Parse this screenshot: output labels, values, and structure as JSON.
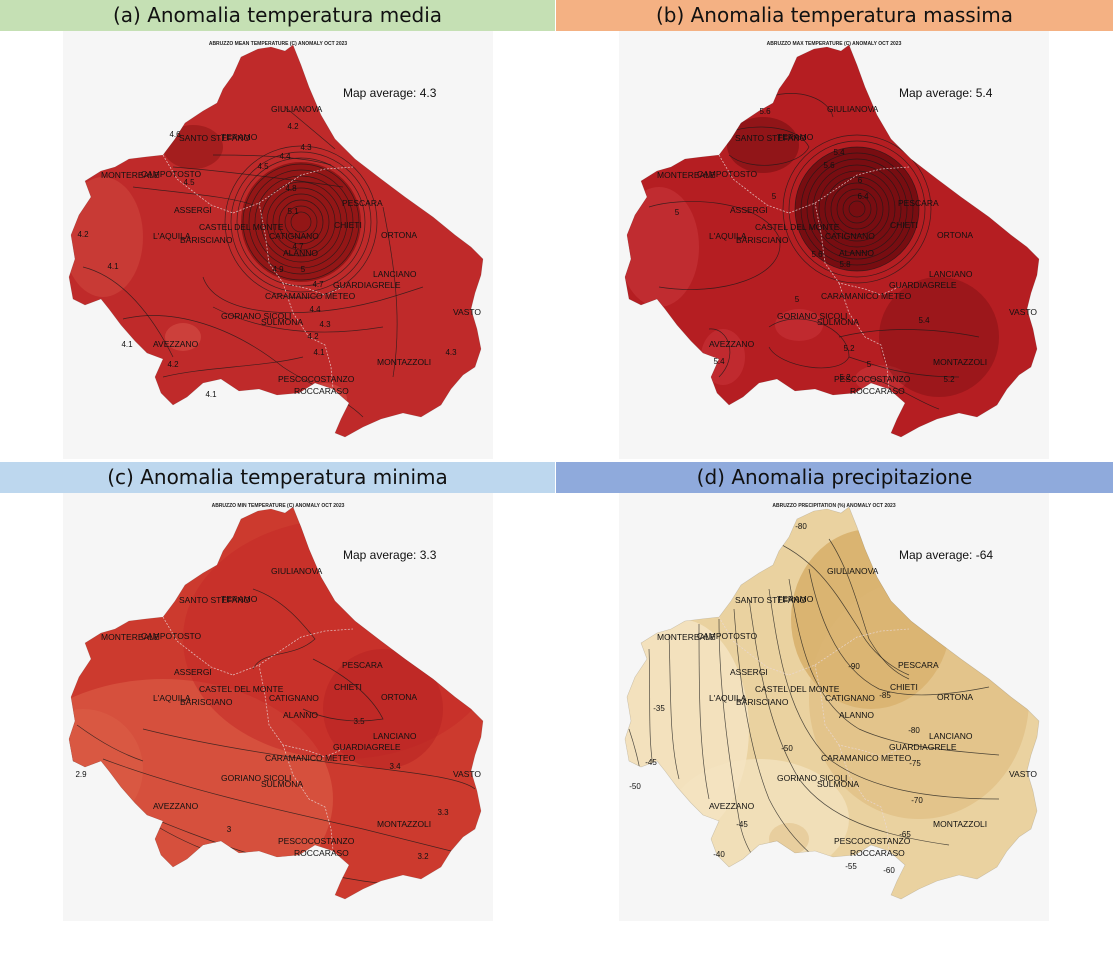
{
  "colors": {
    "header_a": "#c5e0b4",
    "header_b": "#f4b183",
    "header_c": "#bdd7ee",
    "header_d": "#8faadc",
    "frame_bg": "#f6f6f6",
    "mean_fill": "#bf2a2a",
    "mean_dark": "#8e1414",
    "max_fill": "#b51e22",
    "max_dark": "#6d0b0e",
    "min_fill": "#cc3a2e",
    "min_light": "#dc5f48",
    "prec_fill": "#ead2a0",
    "prec_dark": "#d4aa62",
    "prec_light": "#f4e4c2"
  },
  "cities": [
    "GIULIANOVA",
    "SANTO STEFANO",
    "TERAMO",
    "MONTEREALE",
    "CAMPOTOSTO",
    "PESCARA",
    "ASSERGI",
    "CHIETI",
    "CASTEL DEL MONTE",
    "L'AQUILA",
    "CATIGNANO",
    "ORTONA",
    "BARISCIANO",
    "ALANNO",
    "LANCIANO",
    "GUARDIAGRELE",
    "CARAMANICO METEO",
    "VASTO",
    "GORIANO SICOLI",
    "SULMONA",
    "AVEZZANO",
    "MONTAZZOLI",
    "PESCOCOSTANZO",
    "ROCCARASO"
  ],
  "panels": {
    "a": {
      "header": "(a) Anomalia temperatura media",
      "map_title": "ABRUZZO MEAN TEMPERATURE (C) ANOMALY OCT 2023",
      "average": "Map average: 4.3",
      "contour_labels": [
        "4.6",
        "4.2",
        "4.3",
        "4.4",
        "4.5",
        "4.5",
        "4.8",
        "5.1",
        "4.7",
        "4.9",
        "5",
        "4.7",
        "4.4",
        "4.3",
        "4.2",
        "4.1",
        "4.1",
        "4.2",
        "4.2",
        "4.1",
        "4.3",
        "4.1"
      ]
    },
    "b": {
      "header": "(b) Anomalia temperatura massima",
      "map_title": "ABRUZZO MAX TEMPERATURE (C) ANOMALY OCT 2023",
      "average": "Map average: 5.4",
      "contour_labels": [
        "5.6",
        "5.4",
        "5.6",
        "6",
        "6.4",
        "5",
        "5",
        "5.2",
        "5.6",
        "5.8",
        "5",
        "5.4",
        "5.2",
        "5",
        "5.4",
        "5.2"
      ]
    },
    "c": {
      "header": "(c) Anomalia temperatura minima",
      "map_title": "ABRUZZO MIN TEMPERATURE (C) ANOMALY OCT 2023",
      "average": "Map average: 3.3",
      "contour_labels": [
        "3.5",
        "3.4",
        "3.3",
        "3.2",
        "3",
        "2.9"
      ]
    },
    "d": {
      "header": "(d) Anomalia precipitazione",
      "map_title": "ABRUZZO PRECIPITATION (%) ANOMALY OCT 2023",
      "average": "Map average: -64",
      "contour_labels": [
        "-80",
        "-90",
        "-85",
        "-80",
        "-75",
        "-70",
        "-65",
        "-60",
        "-55",
        "-50",
        "-45",
        "-40",
        "-35",
        "-45",
        "-50"
      ]
    }
  }
}
